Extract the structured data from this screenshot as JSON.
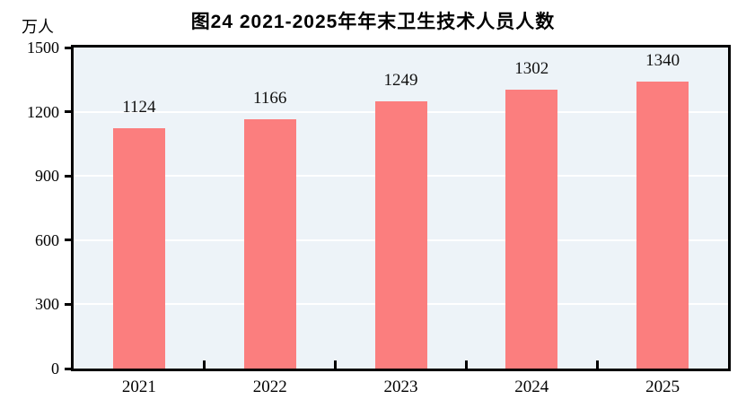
{
  "chart_data": {
    "type": "bar",
    "title": "图24  2021-2025年年末卫生技术人员人数",
    "unit": "万人",
    "categories": [
      "2021",
      "2022",
      "2023",
      "2024",
      "2025"
    ],
    "values": [
      1124,
      1166,
      1249,
      1302,
      1340
    ],
    "ylim": [
      0,
      1500
    ],
    "yticks": [
      0,
      300,
      600,
      900,
      1200,
      1500
    ],
    "xlabel": "",
    "ylabel": "万人",
    "grid": true,
    "legend_position": "none",
    "bar_color": "#FB7E7E",
    "plot_bg": "#EDF3F8",
    "grid_color": "#FFFFFF",
    "axis_color": "#000000",
    "text_color": "#000000"
  }
}
